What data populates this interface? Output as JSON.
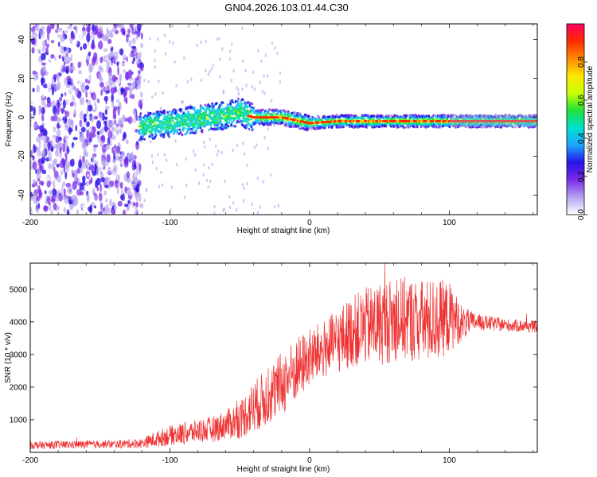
{
  "title": "GN04.2026.103.01.44.C30",
  "chart_data": [
    {
      "type": "heatmap",
      "name": "spectrogram",
      "xlabel": "Height of straight line (km)",
      "ylabel": "Frequency (Hz)",
      "xlim": [
        -200,
        163
      ],
      "ylim": [
        -50,
        48
      ],
      "xticks": [
        -200,
        -100,
        0,
        100
      ],
      "yticks": [
        -40,
        -20,
        0,
        20,
        40
      ],
      "colorbar": {
        "label": "Normalized spectral amplitude",
        "range": [
          0,
          1
        ],
        "ticks": [
          "0.0",
          "0.2",
          "0.4",
          "0.6",
          "0.8"
        ],
        "colors": [
          "#ffffff",
          "#b5a2f0",
          "#7a2ce8",
          "#2a12e6",
          "#1aa6ff",
          "#00e0d0",
          "#1ee23c",
          "#c8ff00",
          "#ffe600",
          "#ff8a00",
          "#ff2a00",
          "#ff0060"
        ]
      },
      "ridge": {
        "description": "carrier frequency vs height",
        "points": [
          [
            -120,
            -5
          ],
          [
            -100,
            -3
          ],
          [
            -80,
            -1
          ],
          [
            -60,
            1
          ],
          [
            -50,
            3
          ],
          [
            -45,
            1
          ],
          [
            -40,
            0
          ],
          [
            -20,
            0
          ],
          [
            0,
            -3
          ],
          [
            20,
            -2
          ],
          [
            60,
            -2
          ],
          [
            100,
            -2
          ],
          [
            163,
            -2
          ]
        ]
      }
    },
    {
      "type": "line",
      "name": "snr",
      "xlabel": "Height of straight line (km)",
      "ylabel": "SNR (10 * v/v)",
      "xlim": [
        -200,
        163
      ],
      "ylim": [
        0,
        5800
      ],
      "xticks": [
        -200,
        -100,
        0,
        100
      ],
      "yticks": [
        1000,
        2000,
        3000,
        4000,
        5000
      ],
      "color": "#ee3333",
      "series": [
        {
          "name": "SNR",
          "x": [
            -200,
            -180,
            -160,
            -140,
            -120,
            -110,
            -100,
            -90,
            -80,
            -70,
            -60,
            -50,
            -40,
            -30,
            -20,
            -10,
            0,
            10,
            20,
            30,
            40,
            50,
            60,
            70,
            80,
            90,
            100,
            110,
            120,
            140,
            163
          ],
          "y": [
            220,
            230,
            240,
            250,
            280,
            400,
            520,
            580,
            650,
            700,
            850,
            1000,
            1400,
            1700,
            2100,
            2500,
            2900,
            3150,
            3400,
            3700,
            3850,
            3950,
            4050,
            4100,
            4000,
            4050,
            4150,
            3950,
            4000,
            3900,
            3850
          ],
          "noise_amplitude": [
            120,
            120,
            120,
            120,
            150,
            250,
            300,
            350,
            350,
            400,
            450,
            600,
            800,
            900,
            1000,
            1000,
            900,
            900,
            1000,
            1100,
            1200,
            1300,
            1300,
            1300,
            1300,
            1300,
            1100,
            500,
            250,
            200,
            180
          ]
        }
      ]
    }
  ]
}
